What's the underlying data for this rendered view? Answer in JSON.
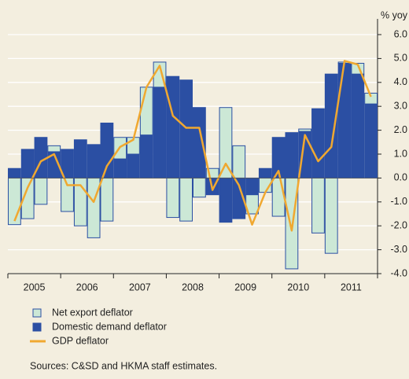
{
  "chart_data": {
    "type": "bar",
    "y_unit_label": "% yoy",
    "categories": [
      null,
      null,
      null,
      null,
      null,
      null,
      null,
      null,
      null,
      null,
      null,
      null,
      null,
      null,
      null,
      null,
      null,
      null,
      null,
      null,
      null,
      null,
      null,
      null,
      null,
      null,
      null,
      null
    ],
    "year_labels": [
      "2005",
      "2006",
      "2007",
      "2008",
      "2009",
      "2010",
      "2011"
    ],
    "series": [
      {
        "name": "Net export deflator",
        "color": "#cce8d6",
        "kind": "bar",
        "values": [
          -1.95,
          -1.7,
          -1.1,
          0.25,
          -1.4,
          -2.0,
          -2.5,
          -1.8,
          0.9,
          0.7,
          2.0,
          1.05,
          -1.65,
          -1.8,
          -0.8,
          0.4,
          2.95,
          1.35,
          -0.8,
          -0.6,
          -1.6,
          -3.8,
          0.1,
          -2.3,
          -3.15,
          0.05,
          0.45,
          0.45
        ]
      },
      {
        "name": "Domestic demand deflator",
        "color": "#2b4fa3",
        "kind": "bar",
        "values": [
          0.4,
          1.2,
          1.7,
          1.1,
          1.2,
          1.6,
          1.4,
          2.3,
          0.8,
          1.0,
          1.8,
          3.8,
          4.25,
          4.1,
          2.95,
          -0.7,
          -1.85,
          -1.7,
          -0.7,
          0.4,
          1.7,
          1.9,
          1.95,
          2.9,
          4.35,
          4.8,
          4.35,
          3.1
        ]
      },
      {
        "name": "GDP deflator",
        "color": "#f0a830",
        "kind": "line",
        "values": [
          -1.8,
          -0.4,
          0.7,
          1.0,
          -0.3,
          -0.3,
          -1.0,
          0.5,
          1.3,
          1.6,
          3.8,
          4.7,
          2.6,
          2.1,
          2.1,
          -0.5,
          0.6,
          -0.3,
          -1.95,
          -0.6,
          0.3,
          -2.2,
          1.8,
          0.7,
          1.3,
          4.9,
          4.75,
          3.4
        ]
      }
    ],
    "ylim": [
      -4,
      6
    ],
    "yticks": [
      {
        "value": 6,
        "label": "6.0"
      },
      {
        "value": 5,
        "label": "5.0"
      },
      {
        "value": 4,
        "label": "4.0"
      },
      {
        "value": 3,
        "label": "3.0"
      },
      {
        "value": 2,
        "label": "2.0"
      },
      {
        "value": 1,
        "label": "1.0"
      },
      {
        "value": 0,
        "label": "0.0"
      },
      {
        "value": -1,
        "label": "-1.0"
      },
      {
        "value": -2,
        "label": "-2.0"
      },
      {
        "value": -3,
        "label": "-3.0"
      },
      {
        "value": -4,
        "label": "-4.0"
      }
    ],
    "grid": true,
    "source": "Sources: C&SD and HKMA staff estimates."
  }
}
